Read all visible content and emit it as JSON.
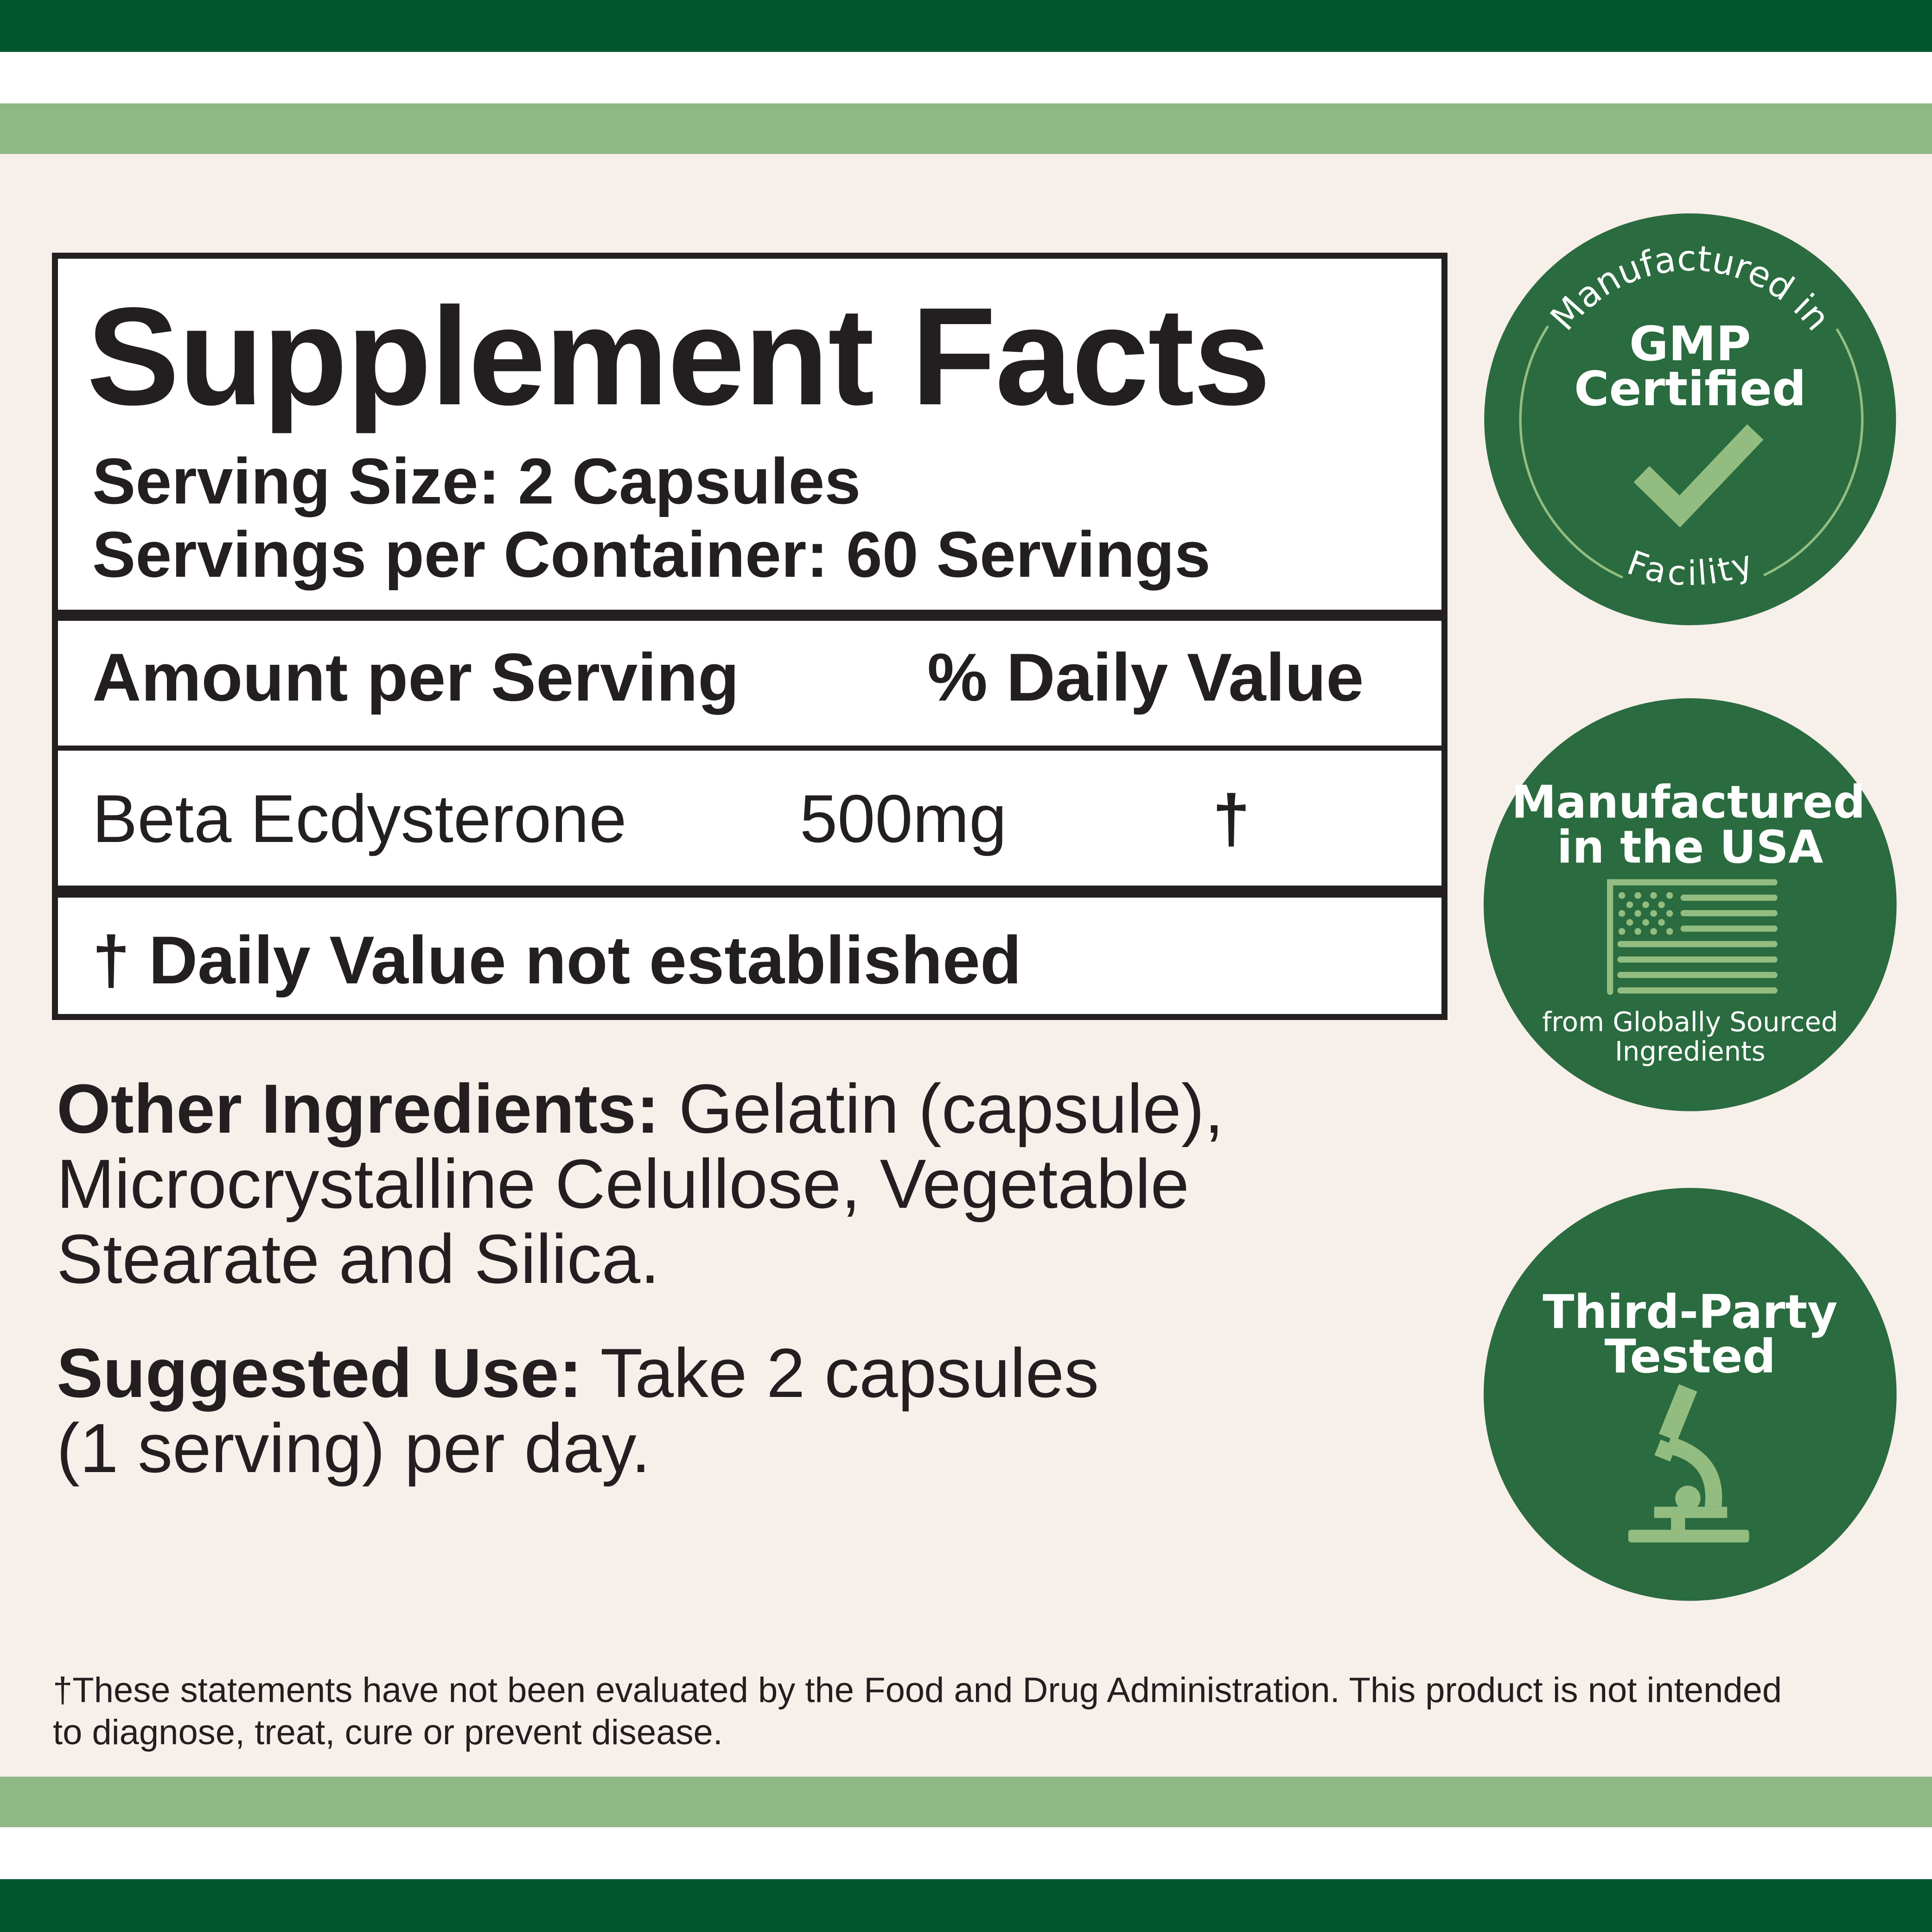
{
  "colors": {
    "dark_green": "#03572f",
    "light_green": "#8fb885",
    "badge_green": "#2a6b3f",
    "badge_accent": "#93bd80",
    "background": "#f7efea",
    "text": "#231f20"
  },
  "facts": {
    "title": "Supplement Facts",
    "serving_size": "Serving Size: 2 Capsules",
    "servings_per_container": "Servings per Container: 60 Servings",
    "header_amount": "Amount per Serving",
    "header_dv": "% Daily Value",
    "rows": [
      {
        "name": "Beta Ecdysterone",
        "amount": "500mg",
        "dv": "†"
      }
    ],
    "footnote": "† Daily Value not established"
  },
  "other_ingredients": {
    "label": "Other Ingredients:",
    "text": " Gelatin (capsule), Microcrystalline Celullose, Vegetable Stearate and Silica."
  },
  "suggested_use": {
    "label": "Suggested Use:",
    "text": " Take 2 capsules (1 serving) per day."
  },
  "disclaimer": "†These statements have not been evaluated by the Food and Drug Administration. This product is not intended to diagnose, treat, cure or prevent disease.",
  "badges": {
    "gmp": {
      "top_arc": "Manufactured in",
      "line1": "GMP",
      "line2": "Certified",
      "bottom_arc": "Facility",
      "icon": "checkmark-icon"
    },
    "usa": {
      "line1": "Manufactured",
      "line2": "in the USA",
      "sub1": "from Globally Sourced",
      "sub2": "Ingredients",
      "icon": "us-flag-icon"
    },
    "tested": {
      "line1": "Third-Party",
      "line2": "Tested",
      "icon": "microscope-icon"
    }
  }
}
